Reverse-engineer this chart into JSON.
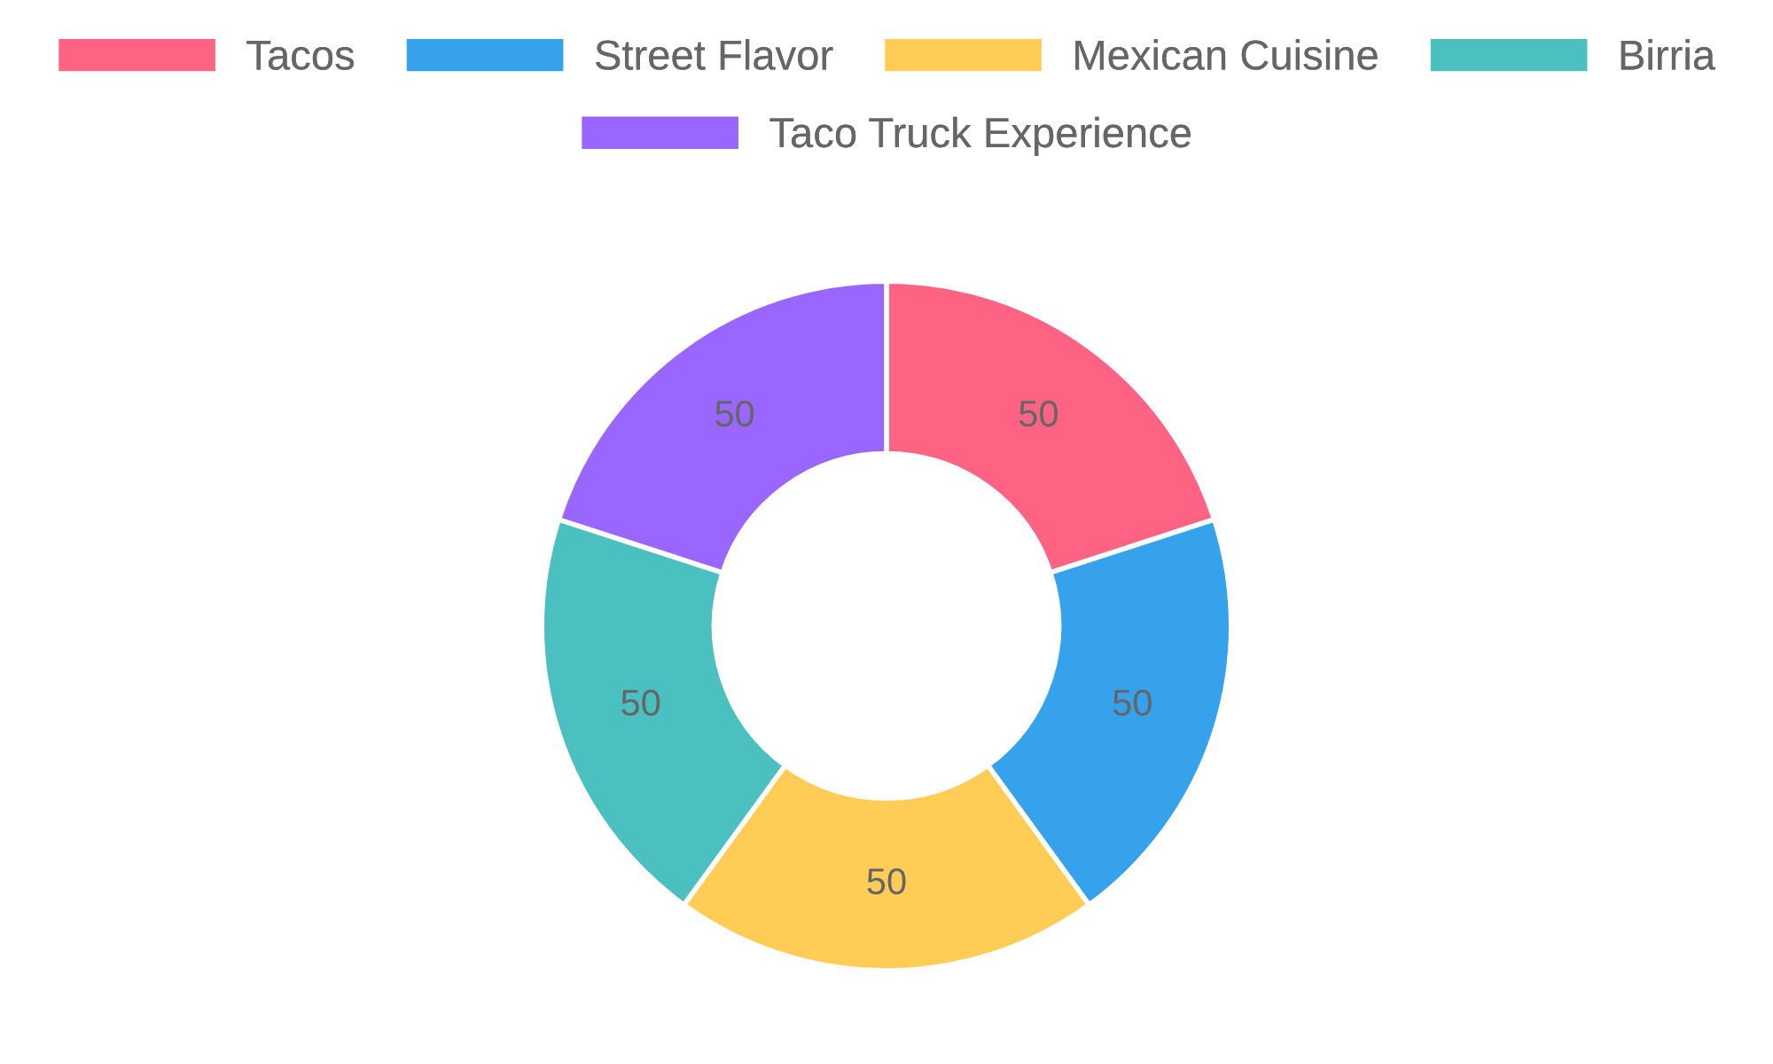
{
  "chart_data": {
    "type": "donut",
    "categories": [
      "Tacos",
      "Street Flavor",
      "Mexican Cuisine",
      "Birria",
      "Taco Truck Experience"
    ],
    "values": [
      50,
      50,
      50,
      50,
      50
    ],
    "colors": [
      "#ff6384",
      "#36a2eb",
      "#ffcd56",
      "#4bc0c0",
      "#9966ff"
    ],
    "data_labels": true,
    "legend": "top"
  }
}
